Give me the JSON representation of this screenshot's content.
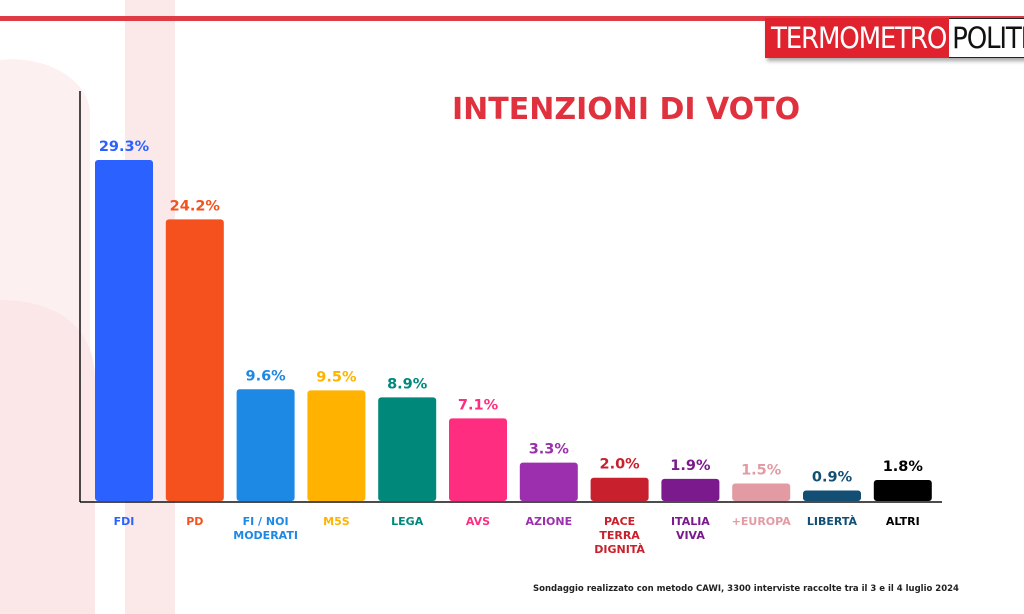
{
  "brand": {
    "logo_part1": "TERMOMETRO",
    "logo_part2": "POLITICO"
  },
  "title": "INTENZIONI DI VOTO",
  "footnote": "Sondaggio realizzato con metodo CAWI, 3300 interviste raccolte tra il 3 e il 4 luglio 2024",
  "chart_data": {
    "type": "bar",
    "title": "INTENZIONI DI VOTO",
    "categories": [
      [
        "FDI"
      ],
      [
        "PD"
      ],
      [
        "FI / NOI",
        "MODERATI"
      ],
      [
        "M5S"
      ],
      [
        "LEGA"
      ],
      [
        "AVS"
      ],
      [
        "AZIONE"
      ],
      [
        "PACE",
        "TERRA",
        "DIGNITÀ"
      ],
      [
        "ITALIA",
        "VIVA"
      ],
      [
        "+EUROPA"
      ],
      [
        "LIBERTÀ"
      ],
      [
        "ALTRI"
      ]
    ],
    "values": [
      29.3,
      24.2,
      9.6,
      9.5,
      8.9,
      7.1,
      3.3,
      2.0,
      1.9,
      1.5,
      0.9,
      1.8
    ],
    "value_labels": [
      "29.3%",
      "24.2%",
      "9.6%",
      "9.5%",
      "8.9%",
      "7.1%",
      "3.3%",
      "2.0%",
      "1.9%",
      "1.5%",
      "0.9%",
      "1.8%"
    ],
    "colors": [
      "#2b62ff",
      "#f4511e",
      "#1e88e5",
      "#ffb300",
      "#00897b",
      "#ff2d7f",
      "#9c2fae",
      "#c8202c",
      "#7b1a8c",
      "#e29aa3",
      "#134e75",
      "#000000"
    ],
    "ylim": [
      0,
      30
    ],
    "grid": false,
    "legend": "none"
  }
}
